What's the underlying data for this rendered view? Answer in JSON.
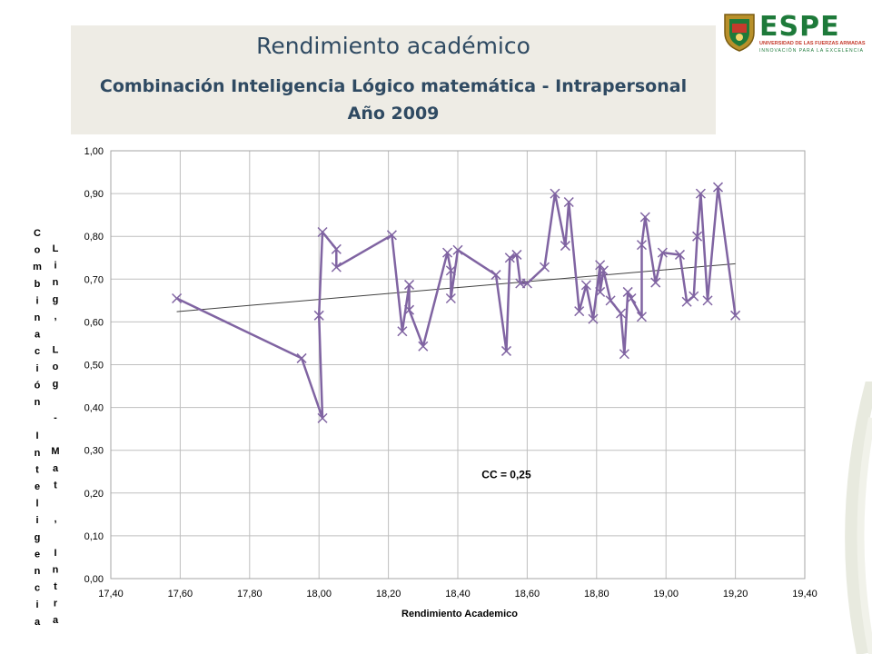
{
  "header": {
    "title": "Rendimiento académico",
    "subtitle": "Combinación Inteligencia Lógico matemática -  Intrapersonal",
    "year": "Año 2009"
  },
  "logo": {
    "name": "ESPE",
    "line1": "UNIVERSIDAD DE LAS FUERZAS ARMADAS",
    "line2": "INNOVACIÓN PARA LA EXCELENCIA"
  },
  "colors": {
    "series": "#8064a2",
    "trend": "#404040",
    "grid": "#bfbfbf",
    "title_text": "#2f4a62",
    "band": "#eeece5"
  },
  "chart_data": {
    "type": "line",
    "xlabel": "Rendimiento Academico",
    "ylabel_col1": "Combinación Inteligencia",
    "ylabel_col2": "Ling, Log - Mat , Intrap",
    "xlim": [
      17.4,
      19.4
    ],
    "ylim": [
      0.0,
      1.0
    ],
    "x_ticks": [
      "17,40",
      "17,60",
      "17,80",
      "18,00",
      "18,20",
      "18,40",
      "18,60",
      "18,80",
      "19,00",
      "19,20",
      "19,40"
    ],
    "y_ticks": [
      "0,00",
      "0,10",
      "0,20",
      "0,30",
      "0,40",
      "0,50",
      "0,60",
      "0,70",
      "0,80",
      "0,90",
      "1,00"
    ],
    "grid": true,
    "annotation": "CC = 0,25",
    "trendline": {
      "x": [
        17.59,
        19.2
      ],
      "y": [
        0.624,
        0.736
      ]
    },
    "series": [
      {
        "marker": "x",
        "x": [
          17.59,
          17.95,
          18.01,
          18.0,
          18.01,
          18.05,
          18.05,
          18.21,
          18.24,
          18.26,
          18.26,
          18.3,
          18.37,
          18.38,
          18.38,
          18.4,
          18.51,
          18.54,
          18.55,
          18.57,
          18.58,
          18.6,
          18.65,
          18.68,
          18.71,
          18.72,
          18.75,
          18.77,
          18.79,
          18.81,
          18.81,
          18.82,
          18.84,
          18.87,
          18.88,
          18.89,
          18.9,
          18.93,
          18.93,
          18.94,
          18.97,
          18.99,
          19.04,
          19.06,
          19.08,
          19.09,
          19.1,
          19.12,
          19.15,
          19.2
        ],
        "y": [
          0.655,
          0.515,
          0.375,
          0.615,
          0.81,
          0.77,
          0.728,
          0.803,
          0.578,
          0.687,
          0.628,
          0.543,
          0.762,
          0.72,
          0.655,
          0.768,
          0.71,
          0.532,
          0.75,
          0.757,
          0.69,
          0.69,
          0.728,
          0.9,
          0.778,
          0.88,
          0.625,
          0.686,
          0.607,
          0.733,
          0.67,
          0.72,
          0.65,
          0.62,
          0.525,
          0.67,
          0.655,
          0.612,
          0.78,
          0.845,
          0.692,
          0.762,
          0.757,
          0.647,
          0.66,
          0.8,
          0.9,
          0.65,
          0.915,
          0.615
        ]
      }
    ]
  }
}
